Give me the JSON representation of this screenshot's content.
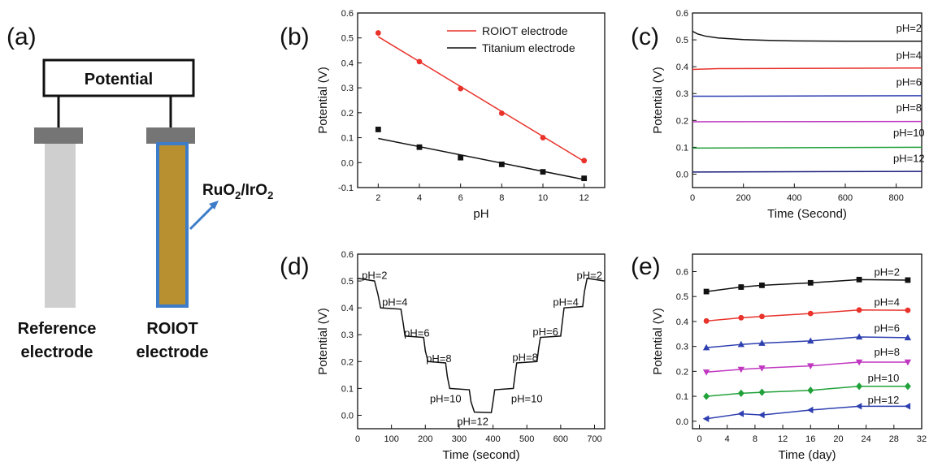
{
  "panel_labels": {
    "a": "(a)",
    "b": "(b)",
    "c": "(c)",
    "d": "(d)",
    "e": "(e)"
  },
  "schematic": {
    "box_label": "Potential",
    "catalyst_main": "RuO",
    "sub1": "2",
    "slash": "/IrO",
    "sub2": "2",
    "ref_line1": "Reference",
    "ref_line2": "electrode",
    "roiot_line1": "ROIOT",
    "roiot_line2": "electrode"
  },
  "colors": {
    "ref_electrode": "#cfcfcf",
    "cap": "#757575",
    "roiot_fill": "#b8902f",
    "roiot_border": "#3d7cc9",
    "arrow": "#3d7cc9"
  },
  "chart_data": [
    {
      "id": "b",
      "type": "scatter",
      "xlabel": "pH",
      "ylabel": "Potential (V)",
      "xlim": [
        1,
        13
      ],
      "ylim": [
        -0.1,
        0.6
      ],
      "xticks": [
        2,
        4,
        6,
        8,
        10,
        12
      ],
      "yticks": [
        -0.1,
        0.0,
        0.1,
        0.2,
        0.3,
        0.4,
        0.5,
        0.6
      ],
      "legend_position": "top-right",
      "series": [
        {
          "name": "ROIOT electrode",
          "color": "#e8322a",
          "marker": "circle",
          "x": [
            2,
            4,
            6,
            8,
            10,
            12
          ],
          "y": [
            0.52,
            0.405,
            0.297,
            0.198,
            0.1,
            0.008
          ],
          "fit": [
            [
              2,
              0.505
            ],
            [
              12,
              0.005
            ]
          ]
        },
        {
          "name": "Titanium electrode",
          "color": "#111111",
          "marker": "square",
          "x": [
            2,
            4,
            6,
            8,
            10,
            12
          ],
          "y": [
            0.133,
            0.062,
            0.02,
            -0.007,
            -0.037,
            -0.063
          ],
          "fit": [
            [
              2,
              0.097
            ],
            [
              12,
              -0.068
            ]
          ]
        }
      ]
    },
    {
      "id": "c",
      "type": "line",
      "xlabel": "Time (Second)",
      "ylabel": "Potential (V)",
      "xlim": [
        0,
        900
      ],
      "ylim": [
        -0.05,
        0.6
      ],
      "xticks": [
        0,
        200,
        400,
        600,
        800
      ],
      "yticks": [
        0.0,
        0.1,
        0.2,
        0.3,
        0.4,
        0.5,
        0.6
      ],
      "series": [
        {
          "label": "pH=2",
          "color": "#111111",
          "x": [
            0,
            20,
            50,
            100,
            200,
            300,
            400,
            600,
            900
          ],
          "y": [
            0.532,
            0.522,
            0.514,
            0.507,
            0.501,
            0.498,
            0.496,
            0.495,
            0.495
          ],
          "label_at": [
            850,
            0.545
          ]
        },
        {
          "label": "pH=4",
          "color": "#e8322a",
          "x": [
            0,
            100,
            900
          ],
          "y": [
            0.39,
            0.393,
            0.395
          ],
          "label_at": [
            850,
            0.445
          ]
        },
        {
          "label": "pH=6",
          "color": "#2e3fb0",
          "x": [
            0,
            900
          ],
          "y": [
            0.29,
            0.292
          ],
          "label_at": [
            850,
            0.345
          ]
        },
        {
          "label": "pH=8",
          "color": "#c037c0",
          "x": [
            0,
            900
          ],
          "y": [
            0.195,
            0.196
          ],
          "label_at": [
            850,
            0.25
          ]
        },
        {
          "label": "pH=10",
          "color": "#21a13a",
          "x": [
            0,
            900
          ],
          "y": [
            0.097,
            0.1
          ],
          "label_at": [
            850,
            0.155
          ]
        },
        {
          "label": "pH=12",
          "color": "#1a1a7a",
          "x": [
            0,
            900
          ],
          "y": [
            0.008,
            0.01
          ],
          "label_at": [
            850,
            0.06
          ]
        }
      ]
    },
    {
      "id": "d",
      "type": "line",
      "xlabel": "Time (second)",
      "ylabel": "Potential (V)",
      "xlim": [
        0,
        730
      ],
      "ylim": [
        -0.05,
        0.6
      ],
      "xticks": [
        0,
        100,
        200,
        300,
        400,
        500,
        600,
        700
      ],
      "yticks": [
        0.0,
        0.1,
        0.2,
        0.3,
        0.4,
        0.5,
        0.6
      ],
      "series": [
        {
          "name": "",
          "color": "#111111",
          "x": [
            0,
            50,
            60,
            68,
            128,
            135,
            140,
            195,
            200,
            208,
            260,
            265,
            272,
            330,
            335,
            345,
            395,
            400,
            405,
            460,
            465,
            470,
            530,
            535,
            540,
            600,
            605,
            610,
            665,
            670,
            678,
            730
          ],
          "y": [
            0.51,
            0.5,
            0.45,
            0.4,
            0.395,
            0.34,
            0.295,
            0.29,
            0.24,
            0.2,
            0.195,
            0.145,
            0.1,
            0.095,
            0.05,
            0.012,
            0.01,
            0.05,
            0.095,
            0.1,
            0.15,
            0.195,
            0.2,
            0.25,
            0.29,
            0.295,
            0.35,
            0.4,
            0.405,
            0.46,
            0.51,
            0.5
          ]
        }
      ],
      "annotations": [
        {
          "text": "pH=2",
          "x": 50,
          "y": 0.52
        },
        {
          "text": "pH=4",
          "x": 110,
          "y": 0.42
        },
        {
          "text": "pH=6",
          "x": 175,
          "y": 0.305
        },
        {
          "text": "pH=8",
          "x": 240,
          "y": 0.21
        },
        {
          "text": "pH=10",
          "x": 260,
          "y": 0.06
        },
        {
          "text": "pH=12",
          "x": 340,
          "y": -0.025
        },
        {
          "text": "pH=10",
          "x": 500,
          "y": 0.06
        },
        {
          "text": "pH=8",
          "x": 495,
          "y": 0.215
        },
        {
          "text": "pH=6",
          "x": 555,
          "y": 0.31
        },
        {
          "text": "pH=4",
          "x": 615,
          "y": 0.42
        },
        {
          "text": "pH=2",
          "x": 685,
          "y": 0.52
        }
      ]
    },
    {
      "id": "e",
      "type": "line",
      "xlabel": "Time (day)",
      "ylabel": "Potential (V)",
      "xlim": [
        -1,
        32
      ],
      "ylim": [
        -0.03,
        0.67
      ],
      "xticks": [
        0,
        4,
        8,
        12,
        16,
        20,
        24,
        28,
        32
      ],
      "yticks": [
        0.0,
        0.1,
        0.2,
        0.3,
        0.4,
        0.5,
        0.6
      ],
      "series": [
        {
          "label": "pH=2",
          "color": "#111111",
          "marker": "square",
          "x": [
            1,
            6,
            9,
            16,
            23,
            30
          ],
          "y": [
            0.52,
            0.538,
            0.545,
            0.555,
            0.568,
            0.566
          ],
          "label_at": [
            27,
            0.6
          ]
        },
        {
          "label": "pH=4",
          "color": "#e8322a",
          "marker": "circle",
          "x": [
            1,
            6,
            9,
            16,
            23,
            30
          ],
          "y": [
            0.402,
            0.415,
            0.42,
            0.432,
            0.446,
            0.445
          ],
          "label_at": [
            27,
            0.48
          ]
        },
        {
          "label": "pH=6",
          "color": "#2e3fb0",
          "marker": "triangle",
          "x": [
            1,
            6,
            9,
            16,
            23,
            30
          ],
          "y": [
            0.295,
            0.308,
            0.313,
            0.322,
            0.338,
            0.335
          ],
          "label_at": [
            27,
            0.375
          ]
        },
        {
          "label": "pH=8",
          "color": "#c037c0",
          "marker": "triangle-down",
          "x": [
            1,
            6,
            9,
            16,
            23,
            30
          ],
          "y": [
            0.197,
            0.208,
            0.213,
            0.222,
            0.237,
            0.237
          ],
          "label_at": [
            27,
            0.28
          ]
        },
        {
          "label": "pH=10",
          "color": "#21a13a",
          "marker": "diamond",
          "x": [
            1,
            6,
            9,
            16,
            23,
            30
          ],
          "y": [
            0.1,
            0.112,
            0.116,
            0.124,
            0.14,
            0.14
          ],
          "label_at": [
            26.5,
            0.175
          ]
        },
        {
          "label": "pH=12",
          "color": "#2e3fb0",
          "marker": "triangle-left",
          "x": [
            1,
            6,
            9,
            16,
            23,
            30
          ],
          "y": [
            0.01,
            0.03,
            0.025,
            0.045,
            0.06,
            0.06
          ],
          "label_at": [
            26.5,
            0.088
          ]
        }
      ]
    }
  ]
}
